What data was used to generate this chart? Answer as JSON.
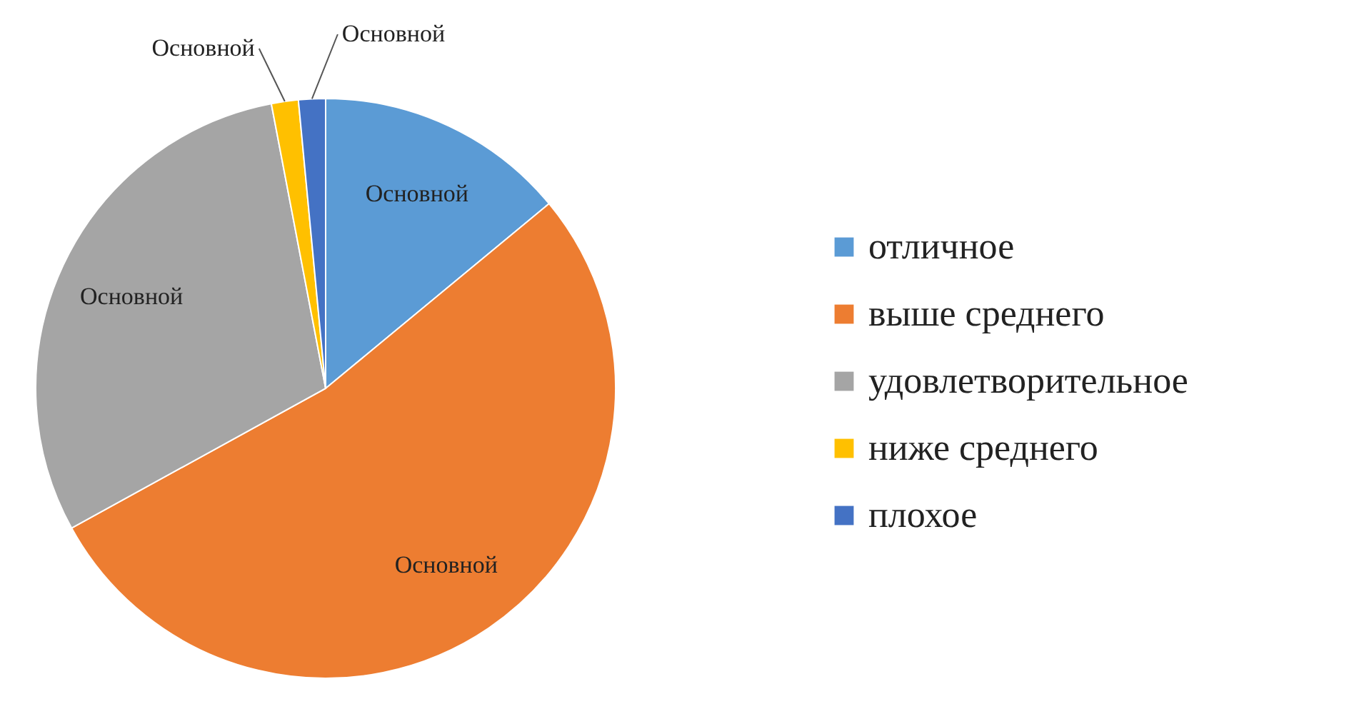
{
  "chart_data": {
    "type": "pie",
    "categories": [
      "отличное",
      "выше среднего",
      "удовлетворительное",
      "ниже среднего",
      "плохое"
    ],
    "values": [
      14,
      53,
      30,
      1.5,
      1.5
    ],
    "colors": [
      "#5b9bd5",
      "#ed7d31",
      "#a5a5a5",
      "#ffc000",
      "#4472c4"
    ],
    "value_labels": [
      "Основной",
      "Основной",
      "Основной",
      "Основной",
      "Основной"
    ],
    "legend": "right"
  }
}
